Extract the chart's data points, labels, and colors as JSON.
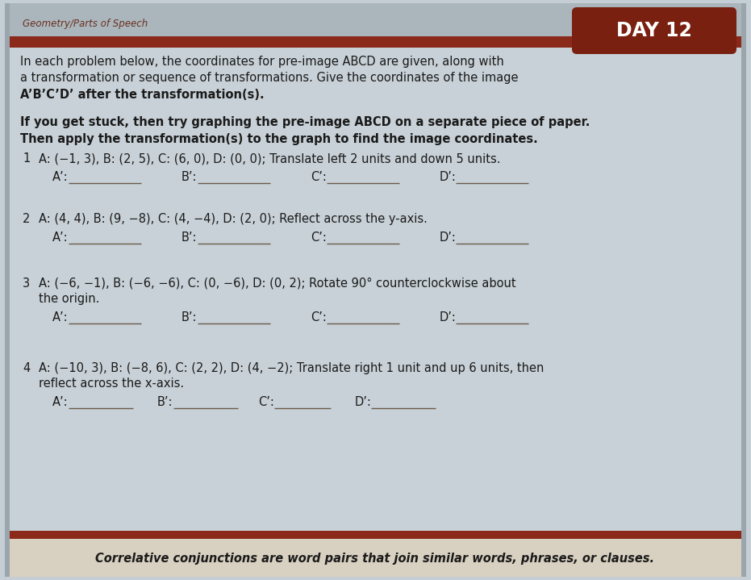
{
  "title_left": "Geometry/Parts of Speech",
  "title_right": "DAY 12",
  "header_bar_color": "#8B2A1A",
  "header_bg_color": "#aab5bc",
  "body_bg_color": "#c5ced4",
  "footer_bg_color": "#d8d0c0",
  "footer_text": "Correlative conjunctions are word pairs that join similar words, phrases, or clauses.",
  "day_pill_color": "#7a2010",
  "title_left_color": "#6a3020",
  "title_right_text_color": "#ffffff",
  "text_color": "#1a1a1a",
  "line_color": "#6a5a4a",
  "p1_text": "A: (−1, 3), B: (2, 5), C: (6, 0), D: (0, 0); Translate left 2 units and down 5 units.",
  "p2_text": "A: (4, 4), B: (9, −8), C: (4, −4), D: (2, 0); Reflect across the y-axis.",
  "p3_text_line1": "A: (−6, −1), B: (−6, −6), C: (0, −6), D: (0, 2); Rotate 90° counterclockwise about",
  "p3_text_line2": "the origin.",
  "p4_text_line1": "A: (−10, 3), B: (−8, 6), C: (2, 2), D: (4, −2); Translate right 1 unit and up 6 units, then",
  "p4_text_line2": "reflect across the x-axis.",
  "ans_labels": [
    "A’:",
    "B’:",
    "C’:",
    "D’:"
  ],
  "intro_line1_pre": "In each problem below, the coordinates for pre-image ",
  "intro_line1_bold": "ABCD",
  "intro_line1_post": " are given, along with",
  "intro_line2": "a transformation or sequence of transformations. Give the coordinates of the image",
  "intro_line3_bold": "A’B’C’D’",
  "intro_line3_post": " after the transformation(s).",
  "hint_line1_pre": "If you get stuck, then try graphing the pre-image ",
  "hint_line1_bold": "ABCD",
  "hint_line1_post": " on a separate piece of paper.",
  "hint_line2": "Then apply the transformation(s) to the graph to find the image coordinates."
}
